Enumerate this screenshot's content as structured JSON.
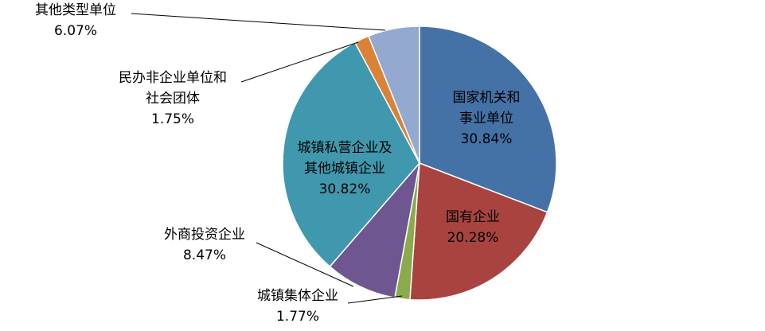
{
  "chart_data": {
    "type": "pie",
    "slices": [
      {
        "label": "国家机关和事业单位",
        "label_lines": [
          "国家机关和",
          "事业单位"
        ],
        "percent_text": "30.84%",
        "value": 30.84,
        "color": "#4471A6"
      },
      {
        "label": "国有企业",
        "label_lines": [
          "国有企业"
        ],
        "percent_text": "20.28%",
        "value": 20.28,
        "color": "#A8433F"
      },
      {
        "label": "城镇集体企业",
        "label_lines": [
          "城镇集体企业"
        ],
        "percent_text": "1.77%",
        "value": 1.77,
        "color": "#8BAA4C"
      },
      {
        "label": "外商投资企业",
        "label_lines": [
          "外商投资企业"
        ],
        "percent_text": "8.47%",
        "value": 8.47,
        "color": "#6E5790"
      },
      {
        "label": "城镇私营企业及其他城镇企业",
        "label_lines": [
          "城镇私营企业及",
          "其他城镇企业"
        ],
        "percent_text": "30.82%",
        "value": 30.82,
        "color": "#3F98AD"
      },
      {
        "label": "民办非企业单位和社会团体",
        "label_lines": [
          "民办非企业单位和",
          "社会团体"
        ],
        "percent_text": "1.75%",
        "value": 1.75,
        "color": "#DC8236"
      },
      {
        "label": "其他类型单位",
        "label_lines": [
          "其他类型单位"
        ],
        "percent_text": "6.07%",
        "value": 6.07,
        "color": "#93A9D0"
      }
    ]
  }
}
